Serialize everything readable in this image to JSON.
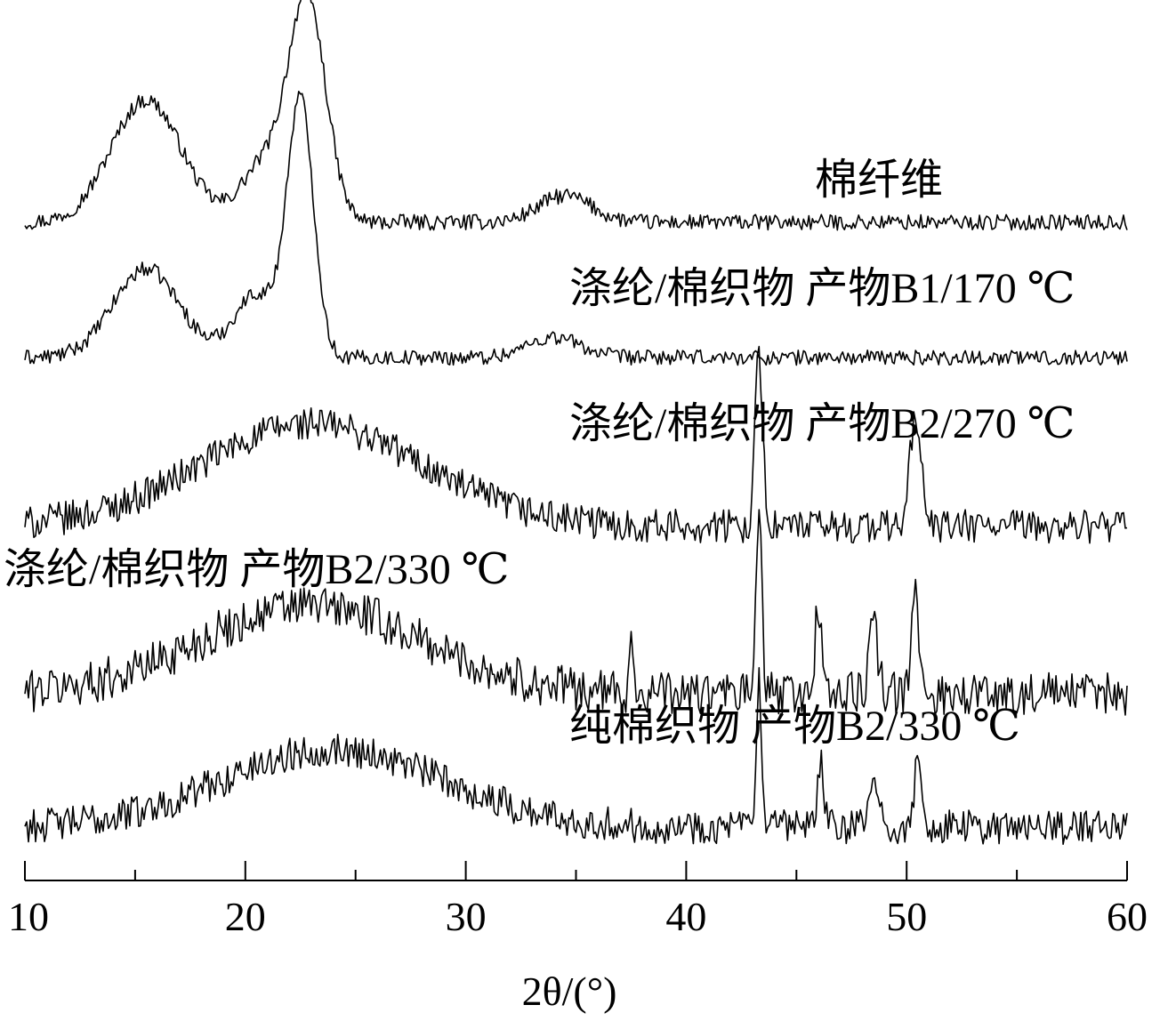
{
  "chart_data": {
    "type": "line",
    "xlabel": "2θ/(°)",
    "xlim": [
      10,
      60
    ],
    "x_ticks": [
      10,
      20,
      30,
      40,
      50,
      60
    ],
    "x_tick_labels": [
      "10",
      "20",
      "30",
      "40",
      "50",
      "60"
    ],
    "minor_ticks": [
      15,
      25,
      35,
      45,
      55
    ],
    "y_axis_shown": false,
    "grid": false,
    "stacked_offset": true,
    "series": [
      {
        "name": "棉纤维",
        "baseline": 0.72,
        "features": [
          {
            "x": 15.5,
            "height": 0.55,
            "width": 1.6
          },
          {
            "x": 22.8,
            "height": 1.0,
            "width": 0.85
          },
          {
            "x": 20.8,
            "height": 0.25,
            "width": 1.0
          },
          {
            "x": 34.5,
            "height": 0.12,
            "width": 1.2
          }
        ],
        "noise": 0.035
      },
      {
        "name": "涤纶/棉织物 产物B1/170 ℃",
        "baseline": 0.0,
        "features": [
          {
            "x": 15.5,
            "height": 0.35,
            "width": 1.5
          },
          {
            "x": 22.5,
            "height": 1.0,
            "width": 0.6
          },
          {
            "x": 20.5,
            "height": 0.25,
            "width": 1.0
          },
          {
            "x": 34.0,
            "height": 0.08,
            "width": 1.2
          }
        ],
        "noise": 0.03
      },
      {
        "name": "涤纶/棉织物 产物B2/270 ℃",
        "baseline": 0.0,
        "features": [
          {
            "x": 23.0,
            "height": 0.55,
            "width": 5.0
          },
          {
            "x": 43.3,
            "height": 0.9,
            "width": 0.18
          },
          {
            "x": 50.4,
            "height": 0.6,
            "width": 0.25
          }
        ],
        "noise": 0.09
      },
      {
        "name": "涤纶/棉织物 产物B2/330 ℃",
        "baseline": 0.0,
        "features": [
          {
            "x": 23.0,
            "height": 0.45,
            "width": 5.0
          },
          {
            "x": 43.3,
            "height": 1.0,
            "width": 0.12
          },
          {
            "x": 46.0,
            "height": 0.45,
            "width": 0.15
          },
          {
            "x": 48.5,
            "height": 0.35,
            "width": 0.2
          },
          {
            "x": 50.4,
            "height": 0.55,
            "width": 0.15
          },
          {
            "x": 37.5,
            "height": 0.35,
            "width": 0.08
          }
        ],
        "noise": 0.11
      },
      {
        "name": "纯棉织物 产物B2/330 ℃",
        "baseline": 0.0,
        "features": [
          {
            "x": 24.0,
            "height": 0.5,
            "width": 5.0
          },
          {
            "x": 43.3,
            "height": 1.0,
            "width": 0.1
          },
          {
            "x": 46.1,
            "height": 0.4,
            "width": 0.15
          },
          {
            "x": 48.5,
            "height": 0.3,
            "width": 0.2
          },
          {
            "x": 50.5,
            "height": 0.4,
            "width": 0.15
          }
        ],
        "noise": 0.11
      }
    ]
  }
}
